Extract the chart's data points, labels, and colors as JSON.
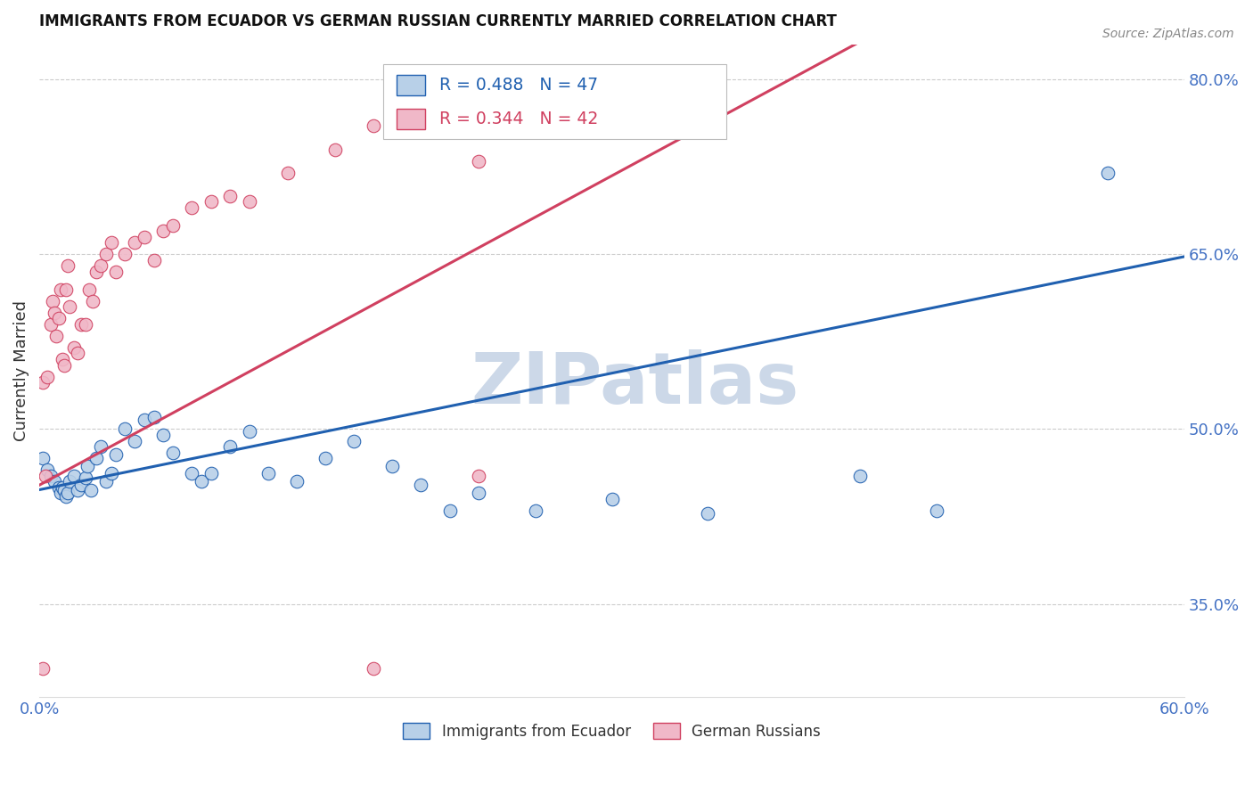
{
  "title": "IMMIGRANTS FROM ECUADOR VS GERMAN RUSSIAN CURRENTLY MARRIED CORRELATION CHART",
  "source": "Source: ZipAtlas.com",
  "ylabel": "Currently Married",
  "xmin": 0.0,
  "xmax": 0.6,
  "ymin": 0.27,
  "ymax": 0.83,
  "yticks": [
    0.35,
    0.5,
    0.65,
    0.8
  ],
  "ytick_labels": [
    "35.0%",
    "50.0%",
    "65.0%",
    "80.0%"
  ],
  "xticks": [
    0.0,
    0.1,
    0.2,
    0.3,
    0.4,
    0.5,
    0.6
  ],
  "xtick_labels": [
    "0.0%",
    "",
    "",
    "",
    "",
    "",
    "60.0%"
  ],
  "blue_R": 0.488,
  "blue_N": 47,
  "pink_R": 0.344,
  "pink_N": 42,
  "blue_color": "#b8d0e8",
  "blue_line_color": "#2060b0",
  "pink_color": "#f0b8c8",
  "pink_line_color": "#d04060",
  "legend_label_blue": "Immigrants from Ecuador",
  "legend_label_pink": "German Russians",
  "watermark": "ZIPatlas",
  "watermark_color": "#ccd8e8",
  "title_color": "#111111",
  "tick_color": "#4472c4",
  "blue_x": [
    0.002,
    0.004,
    0.006,
    0.008,
    0.01,
    0.011,
    0.012,
    0.013,
    0.014,
    0.015,
    0.016,
    0.018,
    0.02,
    0.022,
    0.024,
    0.025,
    0.027,
    0.03,
    0.032,
    0.035,
    0.038,
    0.04,
    0.045,
    0.05,
    0.055,
    0.06,
    0.065,
    0.07,
    0.08,
    0.085,
    0.09,
    0.1,
    0.11,
    0.12,
    0.135,
    0.15,
    0.165,
    0.185,
    0.2,
    0.215,
    0.23,
    0.26,
    0.3,
    0.35,
    0.43,
    0.47,
    0.56
  ],
  "blue_y": [
    0.475,
    0.465,
    0.46,
    0.455,
    0.45,
    0.445,
    0.45,
    0.448,
    0.442,
    0.445,
    0.455,
    0.46,
    0.448,
    0.452,
    0.458,
    0.468,
    0.448,
    0.475,
    0.485,
    0.455,
    0.462,
    0.478,
    0.5,
    0.49,
    0.508,
    0.51,
    0.495,
    0.48,
    0.462,
    0.455,
    0.462,
    0.485,
    0.498,
    0.462,
    0.455,
    0.475,
    0.49,
    0.468,
    0.452,
    0.43,
    0.445,
    0.43,
    0.44,
    0.428,
    0.46,
    0.43,
    0.72
  ],
  "pink_x": [
    0.002,
    0.004,
    0.006,
    0.007,
    0.008,
    0.009,
    0.01,
    0.011,
    0.012,
    0.013,
    0.014,
    0.015,
    0.016,
    0.018,
    0.02,
    0.022,
    0.024,
    0.026,
    0.028,
    0.03,
    0.032,
    0.035,
    0.038,
    0.04,
    0.045,
    0.05,
    0.055,
    0.06,
    0.065,
    0.07,
    0.08,
    0.09,
    0.1,
    0.11,
    0.13,
    0.155,
    0.175,
    0.23,
    0.002,
    0.23,
    0.003,
    0.175
  ],
  "pink_y": [
    0.54,
    0.545,
    0.59,
    0.61,
    0.6,
    0.58,
    0.595,
    0.62,
    0.56,
    0.555,
    0.62,
    0.64,
    0.605,
    0.57,
    0.565,
    0.59,
    0.59,
    0.62,
    0.61,
    0.635,
    0.64,
    0.65,
    0.66,
    0.635,
    0.65,
    0.66,
    0.665,
    0.645,
    0.67,
    0.675,
    0.69,
    0.695,
    0.7,
    0.695,
    0.72,
    0.74,
    0.76,
    0.73,
    0.295,
    0.46,
    0.46,
    0.295
  ]
}
